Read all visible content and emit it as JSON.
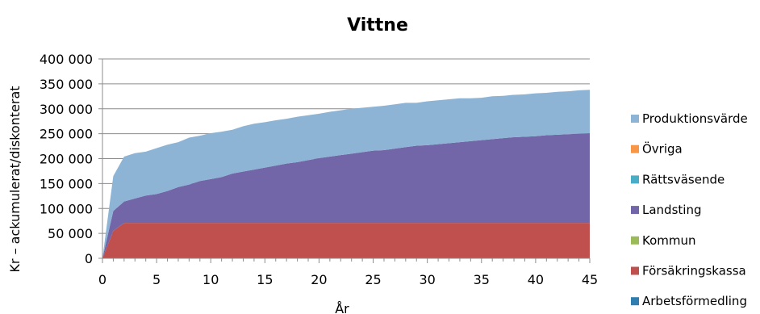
{
  "chart_data": {
    "type": "area",
    "stacked": true,
    "title": "Vittne",
    "xlabel": "År",
    "ylabel": "Kr – ackumulerat/diskonterat",
    "xlim": [
      0,
      45
    ],
    "ylim": [
      0,
      400000
    ],
    "x_ticks": [
      0,
      5,
      10,
      15,
      20,
      25,
      30,
      35,
      40,
      45
    ],
    "x_tick_labels": [
      "0",
      "5",
      "10",
      "15",
      "20",
      "25",
      "30",
      "35",
      "40",
      "45"
    ],
    "y_ticks": [
      0,
      50000,
      100000,
      150000,
      200000,
      250000,
      300000,
      350000,
      400000
    ],
    "y_tick_labels": [
      "0",
      "50 000",
      "100 000",
      "150 000",
      "200 000",
      "250 000",
      "300 000",
      "350 000",
      "400 000"
    ],
    "grid": "horizontal",
    "legend_position": "right",
    "x": [
      0,
      1,
      2,
      3,
      4,
      5,
      6,
      7,
      8,
      9,
      10,
      11,
      12,
      13,
      14,
      15,
      16,
      17,
      18,
      19,
      20,
      21,
      22,
      23,
      24,
      25,
      26,
      27,
      28,
      29,
      30,
      31,
      32,
      33,
      34,
      35,
      36,
      37,
      38,
      39,
      40,
      41,
      42,
      43,
      44,
      45
    ],
    "series": [
      {
        "name": "Arbetsförmedling",
        "color": "#2e7fb0",
        "values": [
          0,
          0,
          0,
          0,
          0,
          0,
          0,
          0,
          0,
          0,
          0,
          0,
          0,
          0,
          0,
          0,
          0,
          0,
          0,
          0,
          0,
          0,
          0,
          0,
          0,
          0,
          0,
          0,
          0,
          0,
          0,
          0,
          0,
          0,
          0,
          0,
          0,
          0,
          0,
          0,
          0,
          0,
          0,
          0,
          0,
          0
        ]
      },
      {
        "name": "Försäkringskassa",
        "color": "#c0504d",
        "values": [
          0,
          55000,
          71000,
          71000,
          71000,
          71000,
          71000,
          71000,
          71000,
          71000,
          71000,
          71000,
          71000,
          71000,
          71000,
          71000,
          71000,
          71000,
          71000,
          71000,
          71000,
          71000,
          71000,
          71000,
          71000,
          71000,
          71000,
          71000,
          71000,
          71000,
          71000,
          71000,
          71000,
          71000,
          71000,
          71000,
          71000,
          71000,
          71000,
          71000,
          71000,
          71000,
          71000,
          71000,
          71000,
          71000
        ]
      },
      {
        "name": "Kommun",
        "color": "#9bbb59",
        "values": [
          0,
          0,
          0,
          0,
          0,
          0,
          0,
          0,
          0,
          0,
          0,
          0,
          0,
          0,
          0,
          0,
          0,
          0,
          0,
          0,
          0,
          0,
          0,
          0,
          0,
          0,
          0,
          0,
          0,
          0,
          0,
          0,
          0,
          0,
          0,
          0,
          0,
          0,
          0,
          0,
          0,
          0,
          0,
          0,
          0,
          0
        ]
      },
      {
        "name": "Landsting",
        "color": "#7366a8",
        "values": [
          0,
          40000,
          43000,
          49000,
          55000,
          58000,
          64000,
          72000,
          77000,
          84000,
          88000,
          92000,
          99000,
          103000,
          107000,
          111000,
          115000,
          119000,
          122000,
          126000,
          130000,
          133000,
          136000,
          139000,
          142000,
          145000,
          146000,
          149000,
          152000,
          155000,
          156000,
          158000,
          160000,
          162000,
          164000,
          166000,
          168000,
          170000,
          172000,
          173000,
          174000,
          176000,
          177000,
          178000,
          179000,
          180000
        ]
      },
      {
        "name": "Rättsväsende",
        "color": "#4bacc6",
        "values": [
          0,
          0,
          0,
          0,
          0,
          0,
          0,
          0,
          0,
          0,
          0,
          0,
          0,
          0,
          0,
          0,
          0,
          0,
          0,
          0,
          0,
          0,
          0,
          0,
          0,
          0,
          0,
          0,
          0,
          0,
          0,
          0,
          0,
          0,
          0,
          0,
          0,
          0,
          0,
          0,
          0,
          0,
          0,
          0,
          0,
          0
        ]
      },
      {
        "name": "Övriga",
        "color": "#f79646",
        "values": [
          0,
          0,
          0,
          0,
          0,
          0,
          0,
          0,
          0,
          0,
          0,
          0,
          0,
          0,
          0,
          0,
          0,
          0,
          0,
          0,
          0,
          0,
          0,
          0,
          0,
          0,
          0,
          0,
          0,
          0,
          0,
          0,
          0,
          0,
          0,
          0,
          0,
          0,
          0,
          0,
          0,
          0,
          0,
          0,
          0,
          0
        ]
      },
      {
        "name": "Produktionsvärde",
        "color": "#8db3d5",
        "values": [
          0,
          70000,
          90000,
          91000,
          88000,
          92000,
          93000,
          90000,
          94000,
          91000,
          92000,
          91000,
          88000,
          91000,
          92000,
          91000,
          91000,
          90000,
          91000,
          90000,
          89000,
          90000,
          90000,
          90000,
          89000,
          88000,
          89000,
          89000,
          89000,
          86000,
          88000,
          88000,
          88000,
          88000,
          86000,
          85000,
          86000,
          85000,
          85000,
          85000,
          86000,
          85000,
          86000,
          86000,
          87000,
          87000
        ]
      }
    ],
    "legend_order": [
      "Produktionsvärde",
      "Övriga",
      "Rättsväsende",
      "Landsting",
      "Kommun",
      "Försäkringskassa",
      "Arbetsförmedling"
    ]
  }
}
